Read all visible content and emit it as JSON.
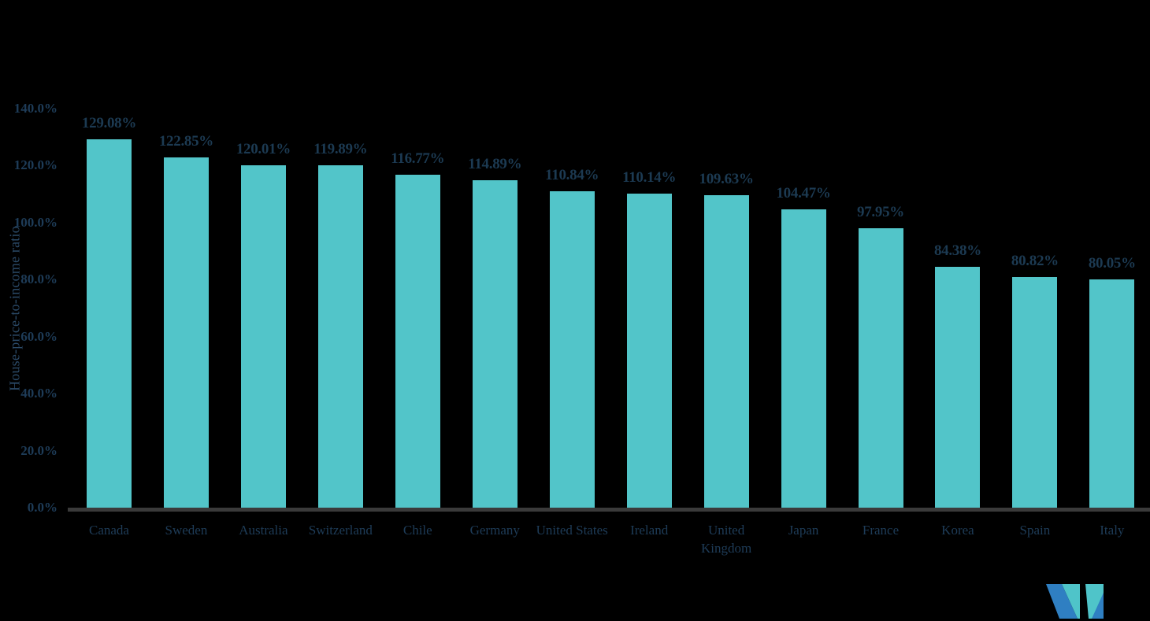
{
  "chart_data": {
    "type": "bar",
    "title": "",
    "xlabel": "",
    "ylabel": "House-price-to-income ratio",
    "categories": [
      "Canada",
      "Sweden",
      "Australia",
      "Switzerland",
      "Chile",
      "Germany",
      "United States",
      "Ireland",
      "United Kingdom",
      "Japan",
      "France",
      "Korea",
      "Spain",
      "Italy"
    ],
    "values": [
      129.08,
      122.85,
      120.01,
      119.89,
      116.77,
      114.89,
      110.84,
      110.14,
      109.63,
      104.47,
      97.95,
      84.38,
      80.82,
      80.05
    ],
    "value_labels": [
      "129.08%",
      "122.85%",
      "120.01%",
      "119.89%",
      "116.77%",
      "114.89%",
      "110.84%",
      "110.14%",
      "109.63%",
      "104.47%",
      "97.95%",
      "84.38%",
      "80.82%",
      "80.05%"
    ],
    "ytick_labels": [
      "0.0%",
      "20.0%",
      "40.0%",
      "60.0%",
      "80.0%",
      "100.0%",
      "120.0%",
      "140.0%"
    ],
    "ytick_values": [
      0,
      20,
      40,
      60,
      80,
      100,
      120,
      140
    ],
    "ylim": [
      0,
      140
    ],
    "grid": false,
    "legend_position": "none"
  },
  "colors": {
    "background": "#000000",
    "bar": "#52C5C9",
    "value_label_text": "#1C3A52",
    "tick_text": "#1E3C58",
    "y_axis_title_text": "#2B4A68",
    "axis_line": "#3A3A3A",
    "logo_teal": "#4FC4C9",
    "logo_blue": "#2F7FC2"
  },
  "logo": {
    "name": "mordor-intelligence-m-logo"
  }
}
